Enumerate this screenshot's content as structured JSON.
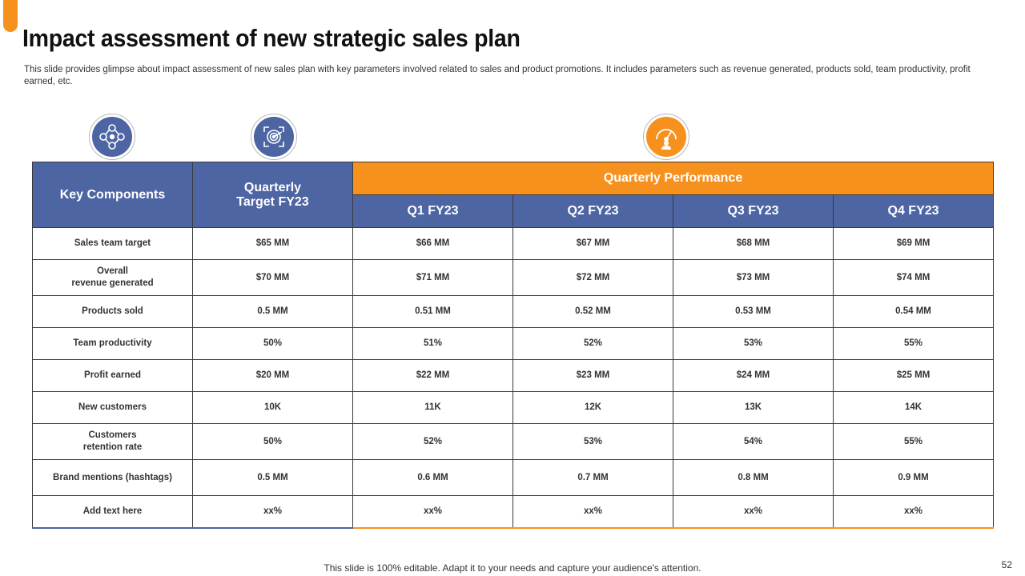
{
  "title": "Impact assessment of new strategic sales plan",
  "subtitle": "This slide provides glimpse about impact assessment of new sales plan with key parameters involved related to sales and product promotions. It includes parameters such as revenue generated, products sold, team productivity, profit earned, etc.",
  "icons": {
    "first": "team-network-icon",
    "second": "target-icon",
    "third": "performance-gauge-icon"
  },
  "colors": {
    "accent_orange": "#F7911E",
    "header_blue": "#4E65A4"
  },
  "table": {
    "head_key": "Key Components",
    "head_target_line1": "Quarterly",
    "head_target_line2": "Target FY23",
    "head_performance": "Quarterly Performance",
    "quarters": [
      "Q1 FY23",
      "Q2 FY23",
      "Q3 FY23",
      "Q4 FY23"
    ],
    "rows": [
      {
        "label1": "Sales team target",
        "label2": "",
        "cells": [
          "$65 MM",
          "$66 MM",
          "$67 MM",
          "$68 MM",
          "$69 MM"
        ]
      },
      {
        "label1": "Overall",
        "label2": "revenue generated",
        "cells": [
          "$70 MM",
          "$71 MM",
          "$72 MM",
          "$73 MM",
          "$74 MM"
        ]
      },
      {
        "label1": "Products sold",
        "label2": "",
        "cells": [
          "0.5 MM",
          "0.51 MM",
          "0.52 MM",
          "0.53 MM",
          "0.54 MM"
        ]
      },
      {
        "label1": "Team productivity",
        "label2": "",
        "cells": [
          "50%",
          "51%",
          "52%",
          "53%",
          "55%"
        ]
      },
      {
        "label1": "Profit earned",
        "label2": "",
        "cells": [
          "$20 MM",
          "$22 MM",
          "$23 MM",
          "$24 MM",
          "$25 MM"
        ]
      },
      {
        "label1": "New customers",
        "label2": "",
        "cells": [
          "10K",
          "11K",
          "12K",
          "13K",
          "14K"
        ]
      },
      {
        "label1": "Customers",
        "label2": "retention rate",
        "cells": [
          "50%",
          "52%",
          "53%",
          "54%",
          "55%"
        ]
      },
      {
        "label1": "Brand mentions (hashtags)",
        "label2": "",
        "cells": [
          "0.5 MM",
          "0.6 MM",
          "0.7 MM",
          "0.8 MM",
          "0.9 MM"
        ]
      },
      {
        "label1": "Add text here",
        "label2": "",
        "cells": [
          "xx%",
          "xx%",
          "xx%",
          "xx%",
          "xx%"
        ]
      }
    ]
  },
  "footer": "This slide is 100% editable. Adapt it to your needs and capture your audience's attention.",
  "page_number": "52"
}
